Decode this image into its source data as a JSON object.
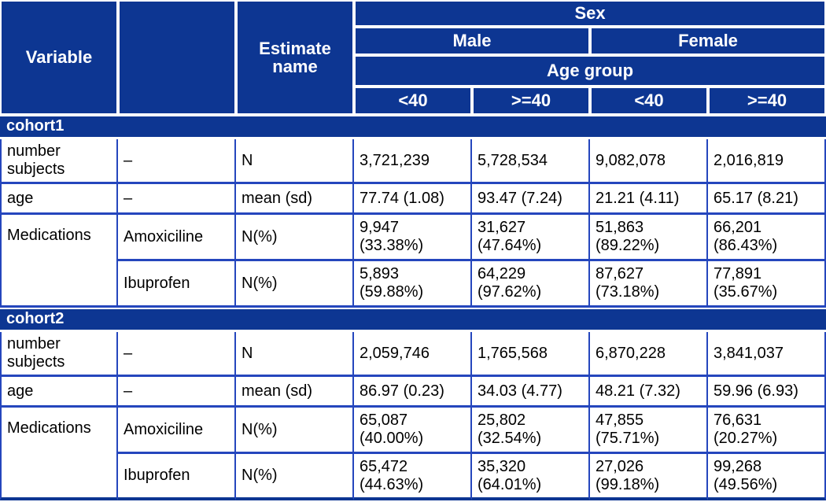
{
  "colors": {
    "header_bg": "#0d3692",
    "grid": "#2546bd",
    "header_text": "#ffffff",
    "body_text": "#000000"
  },
  "chart_data": {
    "type": "table",
    "header": {
      "variable": "Variable",
      "blank": "",
      "estimate_name": "Estimate name",
      "sex": "Sex",
      "male": "Male",
      "female": "Female",
      "age_group": "Age group",
      "subcols": [
        "<40",
        ">=40",
        "<40",
        ">=40"
      ]
    },
    "sections": [
      {
        "label": "cohort1",
        "rows": [
          {
            "variable": "number subjects",
            "level": "–",
            "estimate": "N",
            "values": [
              "3,721,239",
              "5,728,534",
              "9,082,078",
              "2,016,819"
            ]
          },
          {
            "variable": "age",
            "level": "–",
            "estimate": "mean (sd)",
            "values": [
              "77.74 (1.08)",
              "93.47 (7.24)",
              "21.21 (4.11)",
              "65.17 (8.21)"
            ]
          },
          {
            "variable": "Medications",
            "level": "Amoxiciline",
            "estimate": "N(%)",
            "values": [
              "9,947\n(33.38%)",
              "31,627\n(47.64%)",
              "51,863\n(89.22%)",
              "66,201\n(86.43%)"
            ]
          },
          {
            "level": "Ibuprofen",
            "estimate": "N(%)",
            "values": [
              "5,893\n(59.88%)",
              "64,229\n(97.62%)",
              "87,627\n(73.18%)",
              "77,891\n(35.67%)"
            ]
          }
        ]
      },
      {
        "label": "cohort2",
        "rows": [
          {
            "variable": "number subjects",
            "level": "–",
            "estimate": "N",
            "values": [
              "2,059,746",
              "1,765,568",
              "6,870,228",
              "3,841,037"
            ]
          },
          {
            "variable": "age",
            "level": "–",
            "estimate": "mean (sd)",
            "values": [
              "86.97 (0.23)",
              "34.03 (4.77)",
              "48.21 (7.32)",
              "59.96 (6.93)"
            ]
          },
          {
            "variable": "Medications",
            "level": "Amoxiciline",
            "estimate": "N(%)",
            "values": [
              "65,087\n(40.00%)",
              "25,802\n(32.54%)",
              "47,855\n(75.71%)",
              "76,631\n(20.27%)"
            ]
          },
          {
            "level": "Ibuprofen",
            "estimate": "N(%)",
            "values": [
              "65,472\n(44.63%)",
              "35,320\n(64.01%)",
              "27,026\n(99.18%)",
              "99,268\n(49.56%)"
            ]
          }
        ]
      }
    ]
  }
}
